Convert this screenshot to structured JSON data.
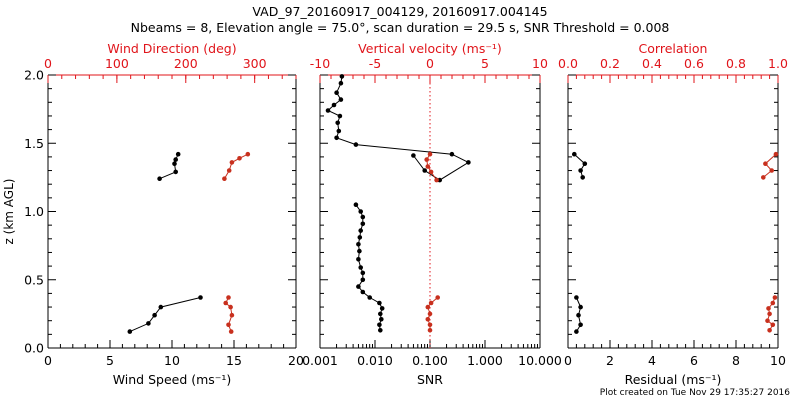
{
  "header": {
    "title_line1": "VAD_97_20160917_004129, 20160917.004145",
    "title_line2": "Nbeams = 8, Elevation angle = 75.0°, scan duration = 29.5 s, SNR Threshold = 0.008"
  },
  "footer": {
    "plot_created": "Plot created on Tue Nov 29 17:35:27 2016"
  },
  "colors": {
    "axis_black": "#000000",
    "accent_red": "#c8301e",
    "top_axis_red": "#e0141a"
  },
  "chart_data": [
    {
      "type": "line",
      "panel": "wind",
      "ylabel": "z (km AGL)",
      "ylim": [
        0,
        2
      ],
      "y_ticks": [
        "0.0",
        "0.5",
        "1.0",
        "1.5",
        "2.0"
      ],
      "y_tick_values": [
        0,
        0.5,
        1.0,
        1.5,
        2.0
      ],
      "bottom_axis": {
        "label": "Wind Speed (ms⁻¹)",
        "lim": [
          0,
          20
        ],
        "ticks": [
          "0",
          "5",
          "10",
          "15",
          "20"
        ],
        "tick_values": [
          0,
          5,
          10,
          15,
          20
        ]
      },
      "top_axis": {
        "label": "Wind Direction (deg)",
        "lim": [
          0,
          360
        ],
        "ticks": [
          "0",
          "100",
          "200",
          "300"
        ],
        "tick_values": [
          0,
          100,
          200,
          300
        ]
      },
      "series": [
        {
          "axis": "bottom",
          "color": "#000000",
          "segments": [
            [
              [
                9.0,
                1.24
              ],
              [
                10.3,
                1.29
              ],
              [
                10.2,
                1.35
              ],
              [
                10.3,
                1.38
              ],
              [
                10.5,
                1.42
              ]
            ],
            [
              [
                6.6,
                0.12
              ],
              [
                8.1,
                0.18
              ],
              [
                8.6,
                0.24
              ],
              [
                9.1,
                0.3
              ],
              [
                12.3,
                0.37
              ]
            ]
          ]
        },
        {
          "axis": "top",
          "color": "#c8301e",
          "segments": [
            [
              [
                256,
                1.24
              ],
              [
                263,
                1.3
              ],
              [
                267,
                1.36
              ],
              [
                278,
                1.39
              ],
              [
                290,
                1.42
              ]
            ],
            [
              [
                266,
                0.12
              ],
              [
                262,
                0.17
              ],
              [
                267,
                0.24
              ],
              [
                265,
                0.3
              ],
              [
                258,
                0.33
              ],
              [
                262,
                0.37
              ]
            ]
          ]
        }
      ]
    },
    {
      "type": "line",
      "panel": "vertical",
      "xscale_bottom": "log",
      "bottom_axis": {
        "label": "SNR",
        "lim": [
          0.001,
          10
        ],
        "ticks": [
          "0.001",
          "0.010",
          "0.100",
          "1.000",
          "10.000"
        ],
        "tick_values": [
          0.001,
          0.01,
          0.1,
          1,
          10
        ]
      },
      "top_axis": {
        "label": "Vertical velocity (ms⁻¹)",
        "lim": [
          -10,
          10
        ],
        "ticks": [
          "-10",
          "-5",
          "0",
          "5",
          "10"
        ],
        "tick_values": [
          -10,
          -5,
          0,
          5,
          10
        ]
      },
      "reference_line": {
        "axis": "top",
        "value": 0,
        "style": "dotted",
        "color": "#e0141a"
      },
      "series": [
        {
          "axis": "bottom",
          "color": "#000000",
          "segments": [
            [
              [
                0.0025,
                1.99
              ],
              [
                0.0024,
                1.94
              ],
              [
                0.002,
                1.87
              ],
              [
                0.0024,
                1.82
              ],
              [
                0.0018,
                1.78
              ],
              [
                0.0014,
                1.74
              ],
              [
                0.0023,
                1.7
              ],
              [
                0.0021,
                1.65
              ],
              [
                0.0022,
                1.59
              ],
              [
                0.002,
                1.54
              ],
              [
                0.0045,
                1.49
              ],
              [
                0.25,
                1.42
              ],
              [
                0.5,
                1.36
              ],
              [
                0.15,
                1.23
              ],
              [
                0.08,
                1.3
              ],
              [
                0.05,
                1.41
              ]
            ],
            [
              [
                0.0045,
                1.05
              ],
              [
                0.0055,
                1.0
              ],
              [
                0.006,
                0.96
              ],
              [
                0.006,
                0.91
              ],
              [
                0.0055,
                0.86
              ],
              [
                0.0053,
                0.81
              ],
              [
                0.005,
                0.76
              ],
              [
                0.0052,
                0.71
              ],
              [
                0.005,
                0.65
              ],
              [
                0.0055,
                0.59
              ],
              [
                0.006,
                0.55
              ],
              [
                0.006,
                0.5
              ],
              [
                0.005,
                0.45
              ],
              [
                0.006,
                0.41
              ],
              [
                0.008,
                0.37
              ],
              [
                0.012,
                0.33
              ],
              [
                0.0135,
                0.29
              ],
              [
                0.0125,
                0.25
              ],
              [
                0.013,
                0.21
              ],
              [
                0.012,
                0.17
              ],
              [
                0.0125,
                0.13
              ]
            ]
          ]
        },
        {
          "axis": "top",
          "color": "#c8301e",
          "segments": [
            [
              [
                0.0,
                1.42
              ],
              [
                -0.3,
                1.38
              ],
              [
                -0.2,
                1.33
              ],
              [
                0.1,
                1.29
              ],
              [
                0.6,
                1.23
              ]
            ],
            [
              [
                0.7,
                0.37
              ],
              [
                0.1,
                0.33
              ],
              [
                -0.2,
                0.3
              ],
              [
                0.0,
                0.25
              ],
              [
                -0.2,
                0.21
              ],
              [
                0.0,
                0.17
              ],
              [
                0.0,
                0.13
              ]
            ]
          ]
        }
      ]
    },
    {
      "type": "line",
      "panel": "residual",
      "bottom_axis": {
        "label": "Residual (ms⁻¹)",
        "lim": [
          0,
          10
        ],
        "ticks": [
          "0",
          "2",
          "4",
          "6",
          "8",
          "10"
        ],
        "tick_values": [
          0,
          2,
          4,
          6,
          8,
          10
        ]
      },
      "top_axis": {
        "label": "Correlation",
        "lim": [
          0,
          1
        ],
        "ticks": [
          "0.0",
          "0.2",
          "0.4",
          "0.6",
          "0.8",
          "1.0"
        ],
        "tick_values": [
          0,
          0.2,
          0.4,
          0.6,
          0.8,
          1.0
        ]
      },
      "series": [
        {
          "axis": "bottom",
          "color": "#000000",
          "segments": [
            [
              [
                0.3,
                1.42
              ],
              [
                0.8,
                1.35
              ],
              [
                0.6,
                1.3
              ],
              [
                0.7,
                1.25
              ]
            ],
            [
              [
                0.4,
                0.37
              ],
              [
                0.6,
                0.3
              ],
              [
                0.5,
                0.24
              ],
              [
                0.6,
                0.17
              ],
              [
                0.4,
                0.12
              ]
            ]
          ]
        },
        {
          "axis": "top",
          "color": "#c8301e",
          "segments": [
            [
              [
                0.99,
                1.42
              ],
              [
                0.94,
                1.35
              ],
              [
                0.97,
                1.3
              ],
              [
                0.93,
                1.25
              ]
            ],
            [
              [
                0.985,
                0.37
              ],
              [
                0.975,
                0.33
              ],
              [
                0.955,
                0.29
              ],
              [
                0.96,
                0.25
              ],
              [
                0.95,
                0.2
              ],
              [
                0.975,
                0.17
              ],
              [
                0.96,
                0.13
              ]
            ]
          ]
        }
      ]
    }
  ]
}
